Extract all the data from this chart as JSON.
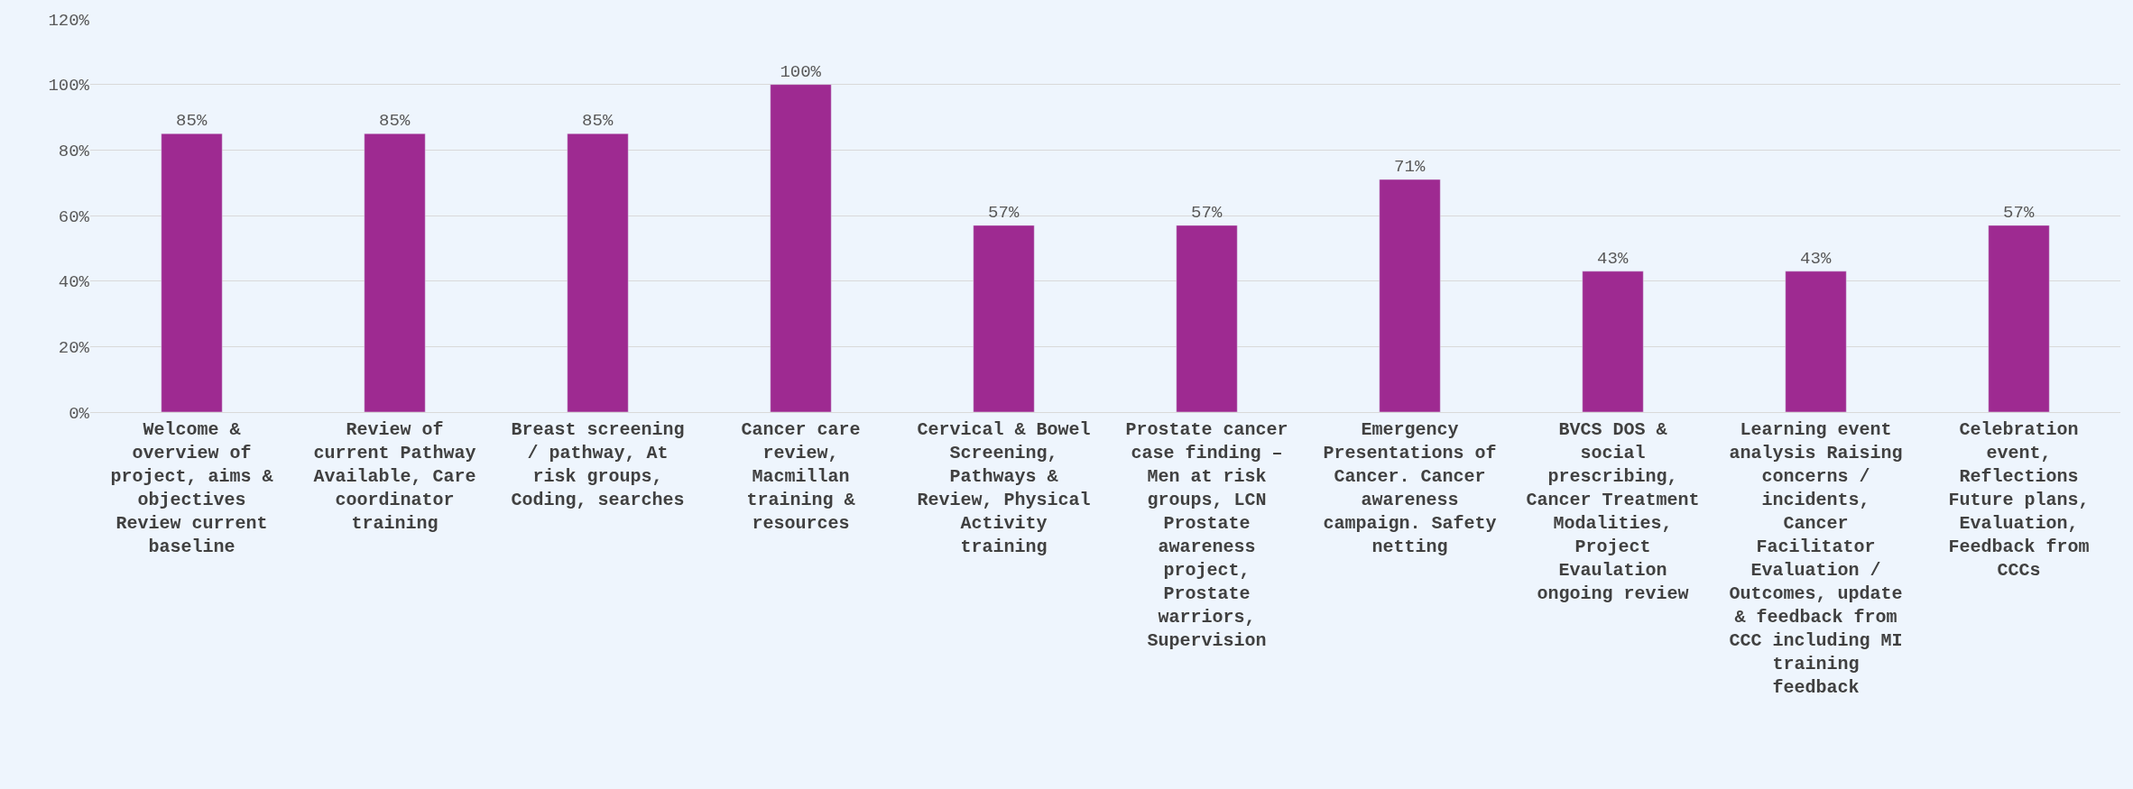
{
  "chart_data": {
    "type": "bar",
    "categories": [
      "Welcome & overview of project, aims & objectives Review current baseline",
      "Review of current Pathway Available, Care coordinator training",
      "Breast screening / pathway, At risk groups, Coding, searches",
      "Cancer care review, Macmillan training & resources",
      "Cervical & Bowel Screening, Pathways & Review, Physical Activity training",
      "Prostate cancer case finding – Men at risk groups, LCN Prostate awareness project, Prostate warriors, Supervision",
      "Emergency Presentations of Cancer. Cancer awareness campaign. Safety netting",
      "BVCS DOS & social prescribing, Cancer Treatment Modalities, Project Evaulation ongoing review",
      "Learning event analysis Raising concerns / incidents, Cancer Facilitator Evaluation / Outcomes, update & feedback from CCC including MI training feedback",
      "Celebration event, Reflections Future plans, Evaluation, Feedback from CCCs"
    ],
    "values": [
      85,
      85,
      85,
      100,
      57,
      57,
      71,
      43,
      43,
      57
    ],
    "value_labels": [
      "85%",
      "85%",
      "85%",
      "100%",
      "57%",
      "57%",
      "71%",
      "43%",
      "43%",
      "57%"
    ],
    "color": "#9e2a91",
    "ylim": [
      0,
      120
    ],
    "yticks": [
      {
        "value": 0,
        "label": "0%"
      },
      {
        "value": 20,
        "label": "20%"
      },
      {
        "value": 40,
        "label": "40%"
      },
      {
        "value": 60,
        "label": "60%"
      },
      {
        "value": 80,
        "label": "80%"
      },
      {
        "value": 100,
        "label": "100%"
      },
      {
        "value": 120,
        "label": "120%"
      }
    ],
    "grid": "y"
  }
}
